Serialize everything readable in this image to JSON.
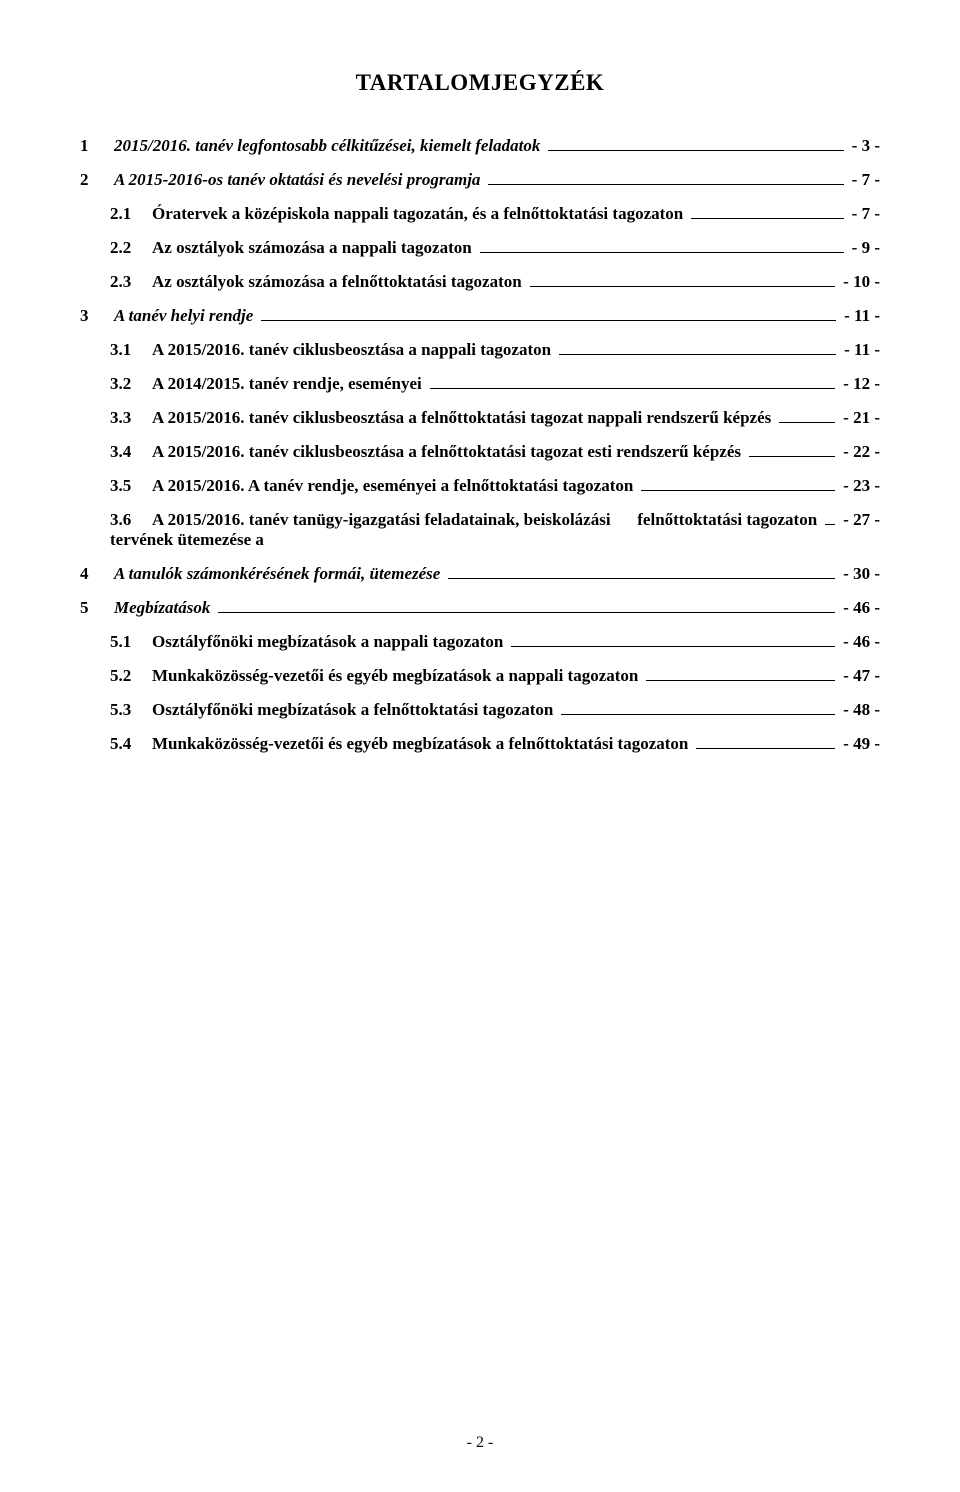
{
  "title": "TARTALOMJEGYZÉK",
  "page_number": "- 2 -",
  "entries": [
    {
      "level": 1,
      "num": "1",
      "label": "2015/2016. tanév legfontosabb célkitűzései, kiemelt feladatok",
      "page": "- 3 -",
      "italic": true
    },
    {
      "level": 1,
      "num": "2",
      "label": "A 2015-2016-os tanév oktatási és nevelési programja",
      "page": "- 7 -",
      "italic": true
    },
    {
      "level": 2,
      "num": "2.1",
      "label": "Óratervek a középiskola nappali tagozatán, és a felnőttoktatási tagozaton",
      "page": "- 7 -"
    },
    {
      "level": 2,
      "num": "2.2",
      "label": "Az osztályok számozása a nappali tagozaton",
      "page": "- 9 -"
    },
    {
      "level": 2,
      "num": "2.3",
      "label": "Az osztályok számozása a felnőttoktatási tagozaton",
      "page": "- 10 -"
    },
    {
      "level": 1,
      "num": "3",
      "label": "A tanév helyi rendje",
      "page": "- 11 -",
      "italic": true
    },
    {
      "level": 2,
      "num": "3.1",
      "label": "A 2015/2016. tanév ciklusbeosztása a nappali tagozaton",
      "page": "- 11 -"
    },
    {
      "level": 2,
      "num": "3.2",
      "label": "A 2014/2015. tanév rendje, eseményei",
      "page": "- 12 -"
    },
    {
      "level": 2,
      "num": "3.3",
      "label": "A 2015/2016. tanév ciklusbeosztása a felnőttoktatási tagozat nappali rendszerű képzés",
      "page": "- 21 -"
    },
    {
      "level": 2,
      "num": "3.4",
      "label": "A 2015/2016. tanév ciklusbeosztása a felnőttoktatási tagozat esti rendszerű képzés",
      "page": "- 22 -"
    },
    {
      "level": 2,
      "num": "3.5",
      "label": "A 2015/2016. A tanév rendje, eseményei a felnőttoktatási tagozaton",
      "page": "- 23 -"
    },
    {
      "level": 2,
      "num": "3.6",
      "label_line1": "A 2015/2016. tanév tanügy-igazgatási feladatainak, beiskolázási tervének ütemezése a",
      "label_line2": "felnőttoktatási tagozaton",
      "page": "- 27 -",
      "wrap": true
    },
    {
      "level": 1,
      "num": "4",
      "label": "A tanulók számonkérésének formái, ütemezése",
      "page": "- 30 -",
      "italic": true
    },
    {
      "level": 1,
      "num": "5",
      "label": "Megbízatások",
      "page": "- 46 -",
      "italic": true
    },
    {
      "level": 2,
      "num": "5.1",
      "label": "Osztályfőnöki megbízatások a nappali tagozaton",
      "page": "- 46 -"
    },
    {
      "level": 2,
      "num": "5.2",
      "label": "Munkaközösség-vezetői és egyéb megbízatások a nappali tagozaton",
      "page": "- 47 -"
    },
    {
      "level": 2,
      "num": "5.3",
      "label": "Osztályfőnöki megbízatások a felnőttoktatási tagozaton",
      "page": "- 48 -"
    },
    {
      "level": 2,
      "num": "5.4",
      "label": "Munkaközösség-vezetői és egyéb megbízatások a felnőttoktatási tagozaton",
      "page": "- 49 -"
    }
  ]
}
